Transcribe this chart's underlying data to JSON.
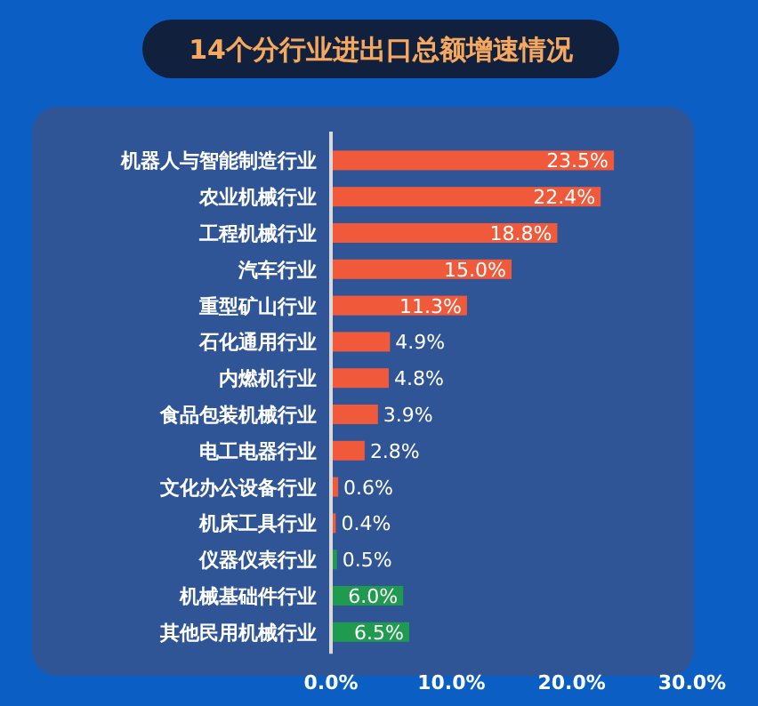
{
  "chart_data": {
    "type": "bar",
    "orientation": "horizontal",
    "title": "14个分行业进出口总额增速情况",
    "categories": [
      "机器人与智能制造行业",
      "农业机械行业",
      "工程机械行业",
      "汽车行业",
      "重型矿山行业",
      "石化通用行业",
      "内燃机行业",
      "食品包装机械行业",
      "电工电器行业",
      "文化办公设备行业",
      "机床工具行业",
      "仪器仪表行业",
      "机械基础件行业",
      "其他民用机械行业"
    ],
    "values": [
      23.5,
      22.4,
      18.8,
      15.0,
      11.3,
      4.9,
      4.8,
      3.9,
      2.8,
      0.6,
      0.4,
      0.5,
      6.0,
      6.5
    ],
    "value_labels": [
      "23.5%",
      "22.4%",
      "18.8%",
      "15.0%",
      "11.3%",
      "4.9%",
      "4.8%",
      "3.9%",
      "2.8%",
      "0.6%",
      "0.4%",
      "0.5%",
      "6.0%",
      "6.5%"
    ],
    "colors": [
      "#f05a3a",
      "#f05a3a",
      "#f05a3a",
      "#f05a3a",
      "#f05a3a",
      "#f05a3a",
      "#f05a3a",
      "#f05a3a",
      "#f05a3a",
      "#f05a3a",
      "#f05a3a",
      "#1f9a4e",
      "#1f9a4e",
      "#1f9a4e"
    ],
    "xlim": [
      0,
      30
    ],
    "xticks": [
      {
        "value": 0,
        "label": "0.0%"
      },
      {
        "value": 10,
        "label": "10.0%"
      },
      {
        "value": 20,
        "label": "20.0%"
      },
      {
        "value": 30,
        "label": "30.0%"
      }
    ],
    "grid": false
  }
}
